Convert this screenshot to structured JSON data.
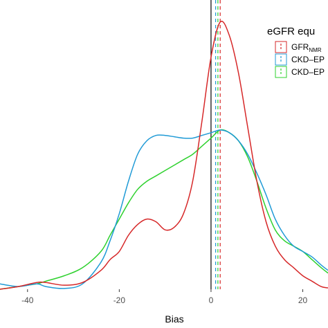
{
  "chart_data": {
    "type": "line",
    "xlabel": "Bias",
    "ylabel": "",
    "xlim": [
      -46,
      25.5
    ],
    "ylim": [
      0,
      1.0
    ],
    "x_ticks": [
      -40,
      -20,
      0,
      20
    ],
    "x_tick_labels": [
      "-40",
      "-20",
      "0",
      "20"
    ],
    "grid": false,
    "legend": {
      "title": "eGFR equ",
      "placement": "top-right",
      "entries": [
        {
          "label": "GFR",
          "label_sub": "NMR",
          "color": "#d62728"
        },
        {
          "label": "CKD–EP",
          "label_sub": "",
          "color": "#1f9ad6"
        },
        {
          "label": "CKD–EP",
          "label_sub": "",
          "color": "#2ed12e"
        }
      ]
    },
    "zero_line": {
      "x": 0,
      "color": "#000000"
    },
    "series": [
      {
        "color": "#d62728",
        "mean_bias": 2.0,
        "x": [
          -46,
          -42,
          -38,
          -36,
          -32,
          -28,
          -24,
          -22,
          -20,
          -18,
          -16,
          -14,
          -12,
          -10,
          -8,
          -6,
          -4,
          -2,
          0,
          2,
          4,
          6,
          8,
          10,
          12,
          14,
          16,
          18,
          20,
          22,
          24,
          25.5
        ],
        "y": [
          0.0,
          0.01,
          0.025,
          0.025,
          0.015,
          0.025,
          0.07,
          0.11,
          0.14,
          0.2,
          0.24,
          0.26,
          0.25,
          0.22,
          0.23,
          0.28,
          0.4,
          0.62,
          0.86,
          0.99,
          0.94,
          0.8,
          0.6,
          0.4,
          0.25,
          0.16,
          0.11,
          0.08,
          0.05,
          0.03,
          0.01,
          0.005
        ]
      },
      {
        "color": "#1f9ad6",
        "mean_bias": 1.0,
        "x": [
          -46,
          -42,
          -38,
          -36,
          -32,
          -28,
          -24,
          -22,
          -20,
          -18,
          -16,
          -14,
          -12,
          -10,
          -8,
          -6,
          -4,
          -2,
          0,
          2,
          4,
          6,
          8,
          10,
          12,
          14,
          16,
          18,
          20,
          22,
          24,
          25.5
        ],
        "y": [
          0.02,
          0.01,
          0.02,
          0.01,
          0.003,
          0.02,
          0.1,
          0.18,
          0.28,
          0.4,
          0.5,
          0.55,
          0.57,
          0.57,
          0.565,
          0.56,
          0.56,
          0.57,
          0.58,
          0.59,
          0.58,
          0.55,
          0.5,
          0.43,
          0.35,
          0.26,
          0.2,
          0.16,
          0.14,
          0.12,
          0.09,
          0.07
        ]
      },
      {
        "color": "#2ed12e",
        "mean_bias": 1.5,
        "x": [
          -46,
          -42,
          -38,
          -36,
          -32,
          -28,
          -24,
          -22,
          -20,
          -18,
          -16,
          -14,
          -12,
          -10,
          -8,
          -6,
          -4,
          -2,
          0,
          2,
          4,
          6,
          8,
          10,
          12,
          14,
          16,
          18,
          20,
          22,
          24,
          25.5
        ],
        "y": [
          0.0,
          0.01,
          0.02,
          0.03,
          0.05,
          0.08,
          0.14,
          0.2,
          0.26,
          0.32,
          0.37,
          0.4,
          0.42,
          0.44,
          0.46,
          0.48,
          0.5,
          0.53,
          0.56,
          0.59,
          0.58,
          0.55,
          0.49,
          0.4,
          0.3,
          0.22,
          0.18,
          0.16,
          0.14,
          0.11,
          0.08,
          0.06
        ]
      }
    ]
  }
}
